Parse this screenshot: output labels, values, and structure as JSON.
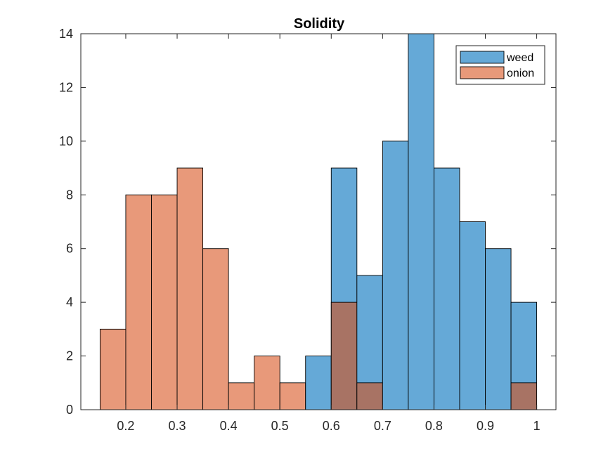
{
  "chart_data": {
    "type": "bar",
    "title": "Solidity",
    "xlabel": "",
    "ylabel": "",
    "xlim": [
      0.1125,
      1.0375
    ],
    "ylim": [
      0,
      14
    ],
    "xticks": [
      0.2,
      0.3,
      0.4,
      0.5,
      0.6,
      0.7,
      0.8,
      0.9,
      1
    ],
    "xtick_labels": [
      "0.2",
      "0.3",
      "0.4",
      "0.5",
      "0.6",
      "0.7",
      "0.8",
      "0.9",
      "1"
    ],
    "yticks": [
      0,
      2,
      4,
      6,
      8,
      10,
      12,
      14
    ],
    "ytick_labels": [
      "0",
      "2",
      "4",
      "6",
      "8",
      "10",
      "12",
      "14"
    ],
    "bin_edges": [
      0.15,
      0.2,
      0.25,
      0.3,
      0.35,
      0.4,
      0.45,
      0.5,
      0.55,
      0.6,
      0.65,
      0.7,
      0.75,
      0.8,
      0.85,
      0.9,
      0.95,
      1.0
    ],
    "overlap_color": "#a87364",
    "series": [
      {
        "name": "weed",
        "color": "#65a9d7",
        "values": [
          0,
          0,
          0,
          0,
          0,
          0,
          0,
          0,
          2,
          9,
          5,
          10,
          14,
          9,
          7,
          6,
          4
        ]
      },
      {
        "name": "onion",
        "color": "#e8997a",
        "values": [
          3,
          8,
          8,
          9,
          6,
          1,
          2,
          1,
          0,
          4,
          1,
          0,
          0,
          0,
          0,
          0,
          1
        ]
      }
    ],
    "legend": {
      "position": "top-right",
      "entries": [
        "weed",
        "onion"
      ]
    },
    "grid": false
  }
}
